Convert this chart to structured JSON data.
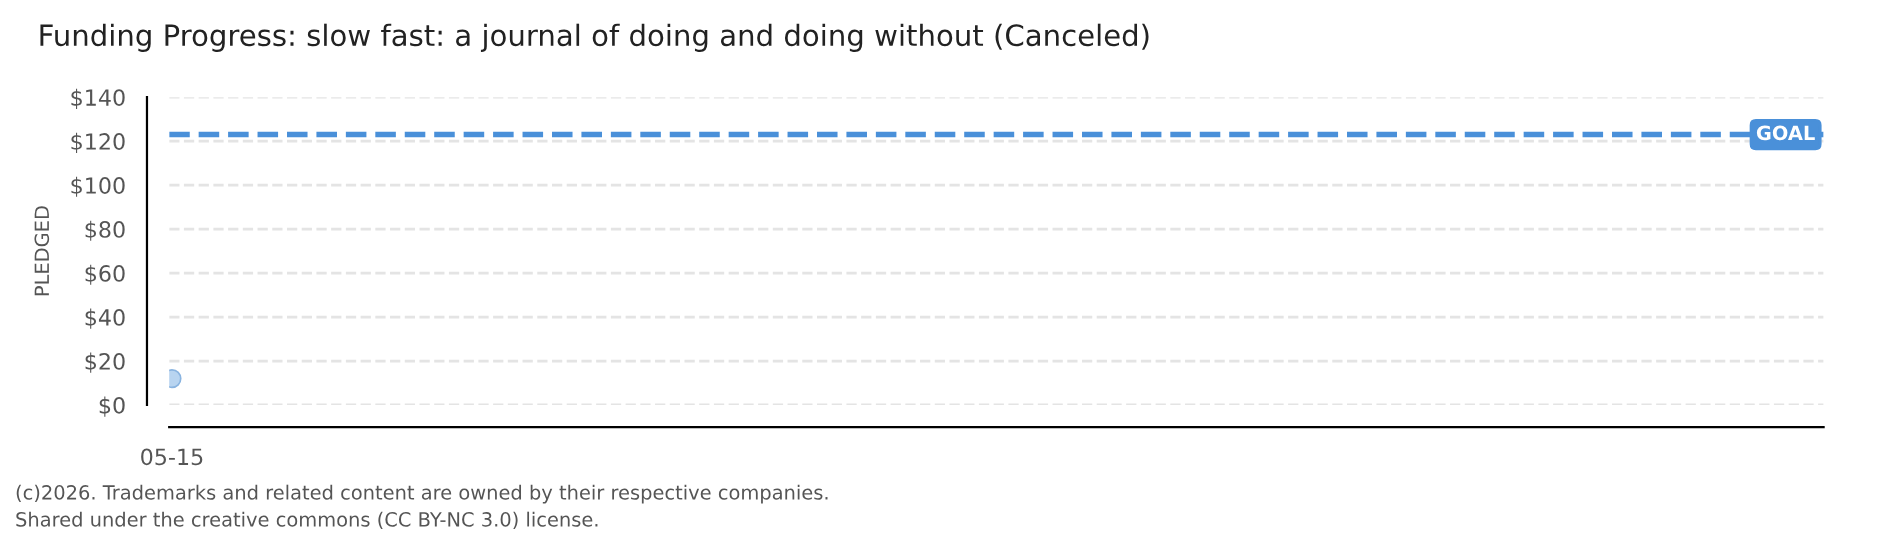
{
  "chart_data": {
    "type": "scatter",
    "title": "Funding Progress: slow fast: a journal of doing and doing without (Canceled)",
    "ylabel": "PLEDGED",
    "categories": [
      "05-15"
    ],
    "series": [
      {
        "color": "#b8d4f0",
        "values": [
          12
        ]
      }
    ],
    "ylim": [
      0,
      140
    ],
    "yticks": [
      {
        "value": 0,
        "label": "$0"
      },
      {
        "value": 20,
        "label": "$20"
      },
      {
        "value": 40,
        "label": "$40"
      },
      {
        "value": 60,
        "label": "$60"
      },
      {
        "value": 80,
        "label": "$80"
      },
      {
        "value": 100,
        "label": "$100"
      },
      {
        "value": 120,
        "label": "$120"
      },
      {
        "value": 140,
        "label": "$140"
      }
    ],
    "ref_lines": [
      {
        "axis": "y",
        "value": 123,
        "label": "GOAL",
        "color": "#4a90d9",
        "line_style": "dashed"
      }
    ],
    "grid": "y",
    "marker": "circle",
    "annotations": [
      "(c)2026. Trademarks and related content are owned by their respective companies.",
      "Shared under the creative commons (CC BY-NC 3.0) license."
    ]
  }
}
